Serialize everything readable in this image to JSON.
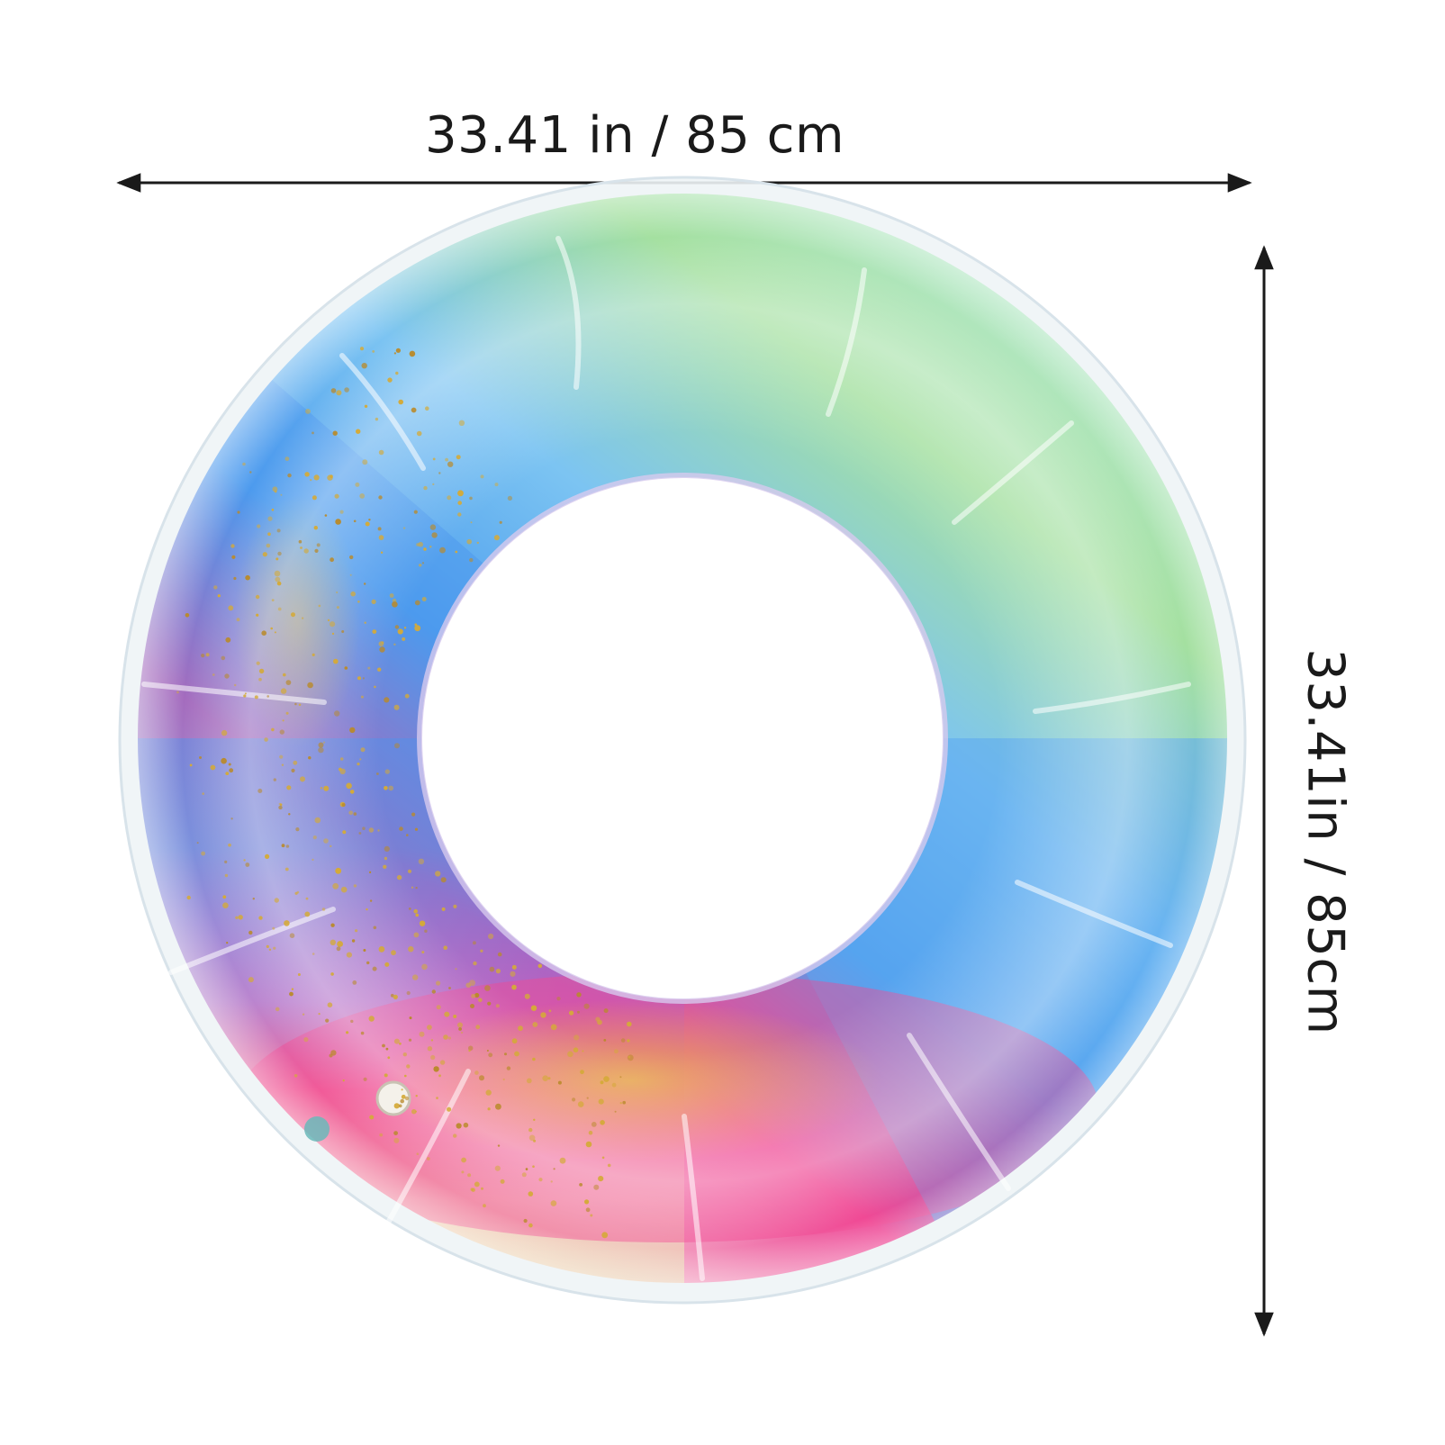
{
  "dimensions": {
    "width_label": "33.41 in / 85 cm",
    "height_label": "33.41in / 85cm"
  },
  "product": {
    "subject": "inflatable-swim-ring",
    "colors": {
      "green": "#a9e3a6",
      "blue": "#4fa6ef",
      "pink": "#f0428f",
      "cream": "#efe7c2",
      "glitter": "#d4aa38"
    }
  },
  "arrow_color": "#1a1a1a"
}
